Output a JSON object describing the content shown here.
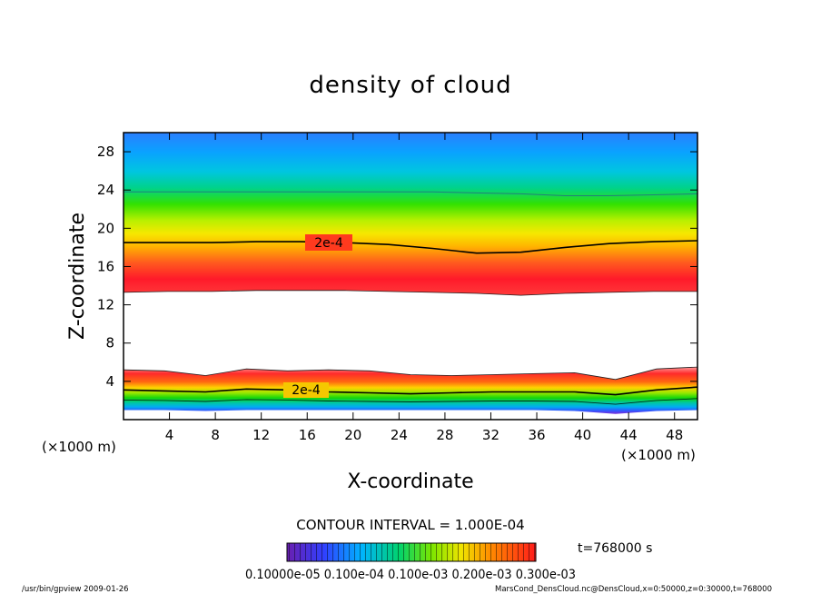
{
  "chart_data": {
    "type": "heatmap",
    "title": "density of cloud",
    "xlabel": "X-coordinate",
    "ylabel": "Z-coordinate",
    "x_unit_left": "(×1000 m)",
    "x_unit_right": "(×1000 m)",
    "xlim": [
      0,
      50
    ],
    "ylim": [
      0,
      30
    ],
    "xticks": [
      4,
      8,
      12,
      16,
      20,
      24,
      28,
      32,
      36,
      40,
      44,
      48
    ],
    "yticks": [
      4,
      8,
      12,
      16,
      20,
      24,
      28
    ],
    "contour_interval_text": "CONTOUR INTERVAL = 1.000E-04",
    "time_text": "t=768000 s",
    "colorbar_text": "0.10000e-05 0.100e-04 0.100e-03 0.200e-03 0.300e-03",
    "contour_label": "2e-4",
    "upper_band": {
      "bottom_z": [
        13.3,
        13.4,
        13.4,
        13.5,
        13.5,
        13.5,
        13.4,
        13.3,
        13.2,
        13.0,
        13.2,
        13.3,
        13.4,
        13.4
      ],
      "contour_z": [
        18.5,
        18.5,
        18.5,
        18.6,
        18.6,
        18.5,
        18.3,
        17.9,
        17.4,
        17.5,
        18.0,
        18.4,
        18.6,
        18.7
      ],
      "mid_z": [
        23.8,
        23.8,
        23.8,
        23.8,
        23.8,
        23.8,
        23.8,
        23.8,
        23.7,
        23.6,
        23.4,
        23.4,
        23.5,
        23.6
      ],
      "top_z": 30
    },
    "lower_band": {
      "top_z": [
        5.2,
        5.1,
        4.6,
        5.3,
        5.1,
        5.2,
        5.1,
        4.7,
        4.6,
        4.7,
        4.8,
        4.9,
        4.2,
        5.3,
        5.5
      ],
      "contour_z": [
        3.1,
        3.0,
        2.9,
        3.2,
        3.1,
        2.9,
        2.8,
        2.7,
        2.8,
        2.9,
        2.9,
        2.9,
        2.6,
        3.1,
        3.4
      ],
      "bottom_z": [
        1.0,
        1.0,
        0.9,
        1.0,
        1.0,
        1.0,
        1.0,
        1.0,
        1.0,
        1.0,
        1.0,
        0.9,
        0.6,
        0.9,
        1.0
      ]
    }
  },
  "footer": {
    "left": "/usr/bin/gpview   2009-01-26",
    "right": "MarsCond_DensCloud.nc@DensCloud,x=0:50000,z=0:30000,t=768000"
  },
  "colors": {
    "blue_top": "#2a7fff",
    "red_core": "#ff1a2a",
    "violet": "#7a2bd6"
  }
}
